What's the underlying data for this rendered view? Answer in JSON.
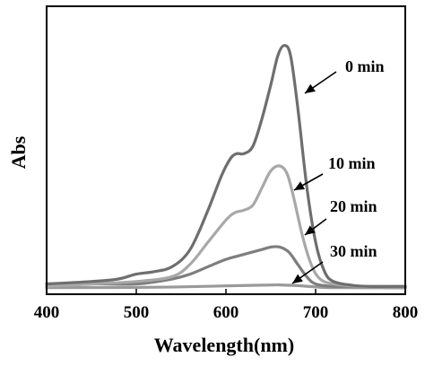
{
  "chart_data": {
    "type": "line",
    "xlabel": "Wavelength(nm)",
    "ylabel": "Abs",
    "xlim": [
      400,
      800
    ],
    "ylim": [
      0,
      1.0
    ],
    "x_ticks": [
      "400",
      "500",
      "600",
      "700",
      "800"
    ],
    "grid": false,
    "legend": "none",
    "series": [
      {
        "label": "0 min",
        "color": "#6e6e6e",
        "x": [
          400,
          450,
          480,
          500,
          520,
          540,
          560,
          580,
          595,
          605,
          612,
          620,
          630,
          640,
          650,
          658,
          665,
          672,
          680,
          690,
          700,
          710,
          720,
          740,
          760,
          800
        ],
        "y": [
          0.02,
          0.03,
          0.04,
          0.06,
          0.07,
          0.09,
          0.16,
          0.32,
          0.46,
          0.53,
          0.55,
          0.55,
          0.58,
          0.69,
          0.83,
          0.95,
          0.99,
          0.95,
          0.74,
          0.42,
          0.19,
          0.07,
          0.03,
          0.015,
          0.01,
          0.01
        ]
      },
      {
        "label": "10 min",
        "color": "#a8a8a8",
        "x": [
          400,
          450,
          500,
          540,
          560,
          580,
          600,
          610,
          620,
          630,
          640,
          650,
          660,
          668,
          675,
          685,
          695,
          705,
          720,
          750,
          800
        ],
        "y": [
          0.01,
          0.02,
          0.03,
          0.05,
          0.1,
          0.19,
          0.28,
          0.31,
          0.32,
          0.34,
          0.41,
          0.48,
          0.5,
          0.47,
          0.38,
          0.22,
          0.1,
          0.04,
          0.02,
          0.01,
          0.01
        ]
      },
      {
        "label": "20 min",
        "color": "#7e7e7e",
        "x": [
          400,
          450,
          500,
          540,
          560,
          580,
          600,
          620,
          640,
          650,
          660,
          670,
          680,
          690,
          700,
          720,
          750,
          800
        ],
        "y": [
          0.01,
          0.02,
          0.02,
          0.04,
          0.06,
          0.09,
          0.12,
          0.14,
          0.16,
          0.17,
          0.17,
          0.15,
          0.1,
          0.05,
          0.02,
          0.01,
          0.01,
          0.01
        ]
      },
      {
        "label": "30 min",
        "color": "#999999",
        "x": [
          400,
          500,
          550,
          600,
          640,
          660,
          680,
          700,
          720,
          800
        ],
        "y": [
          0.005,
          0.006,
          0.008,
          0.012,
          0.015,
          0.016,
          0.013,
          0.008,
          0.005,
          0.004
        ]
      }
    ],
    "annotations": [
      {
        "text": "0 min",
        "target_series": 0
      },
      {
        "text": "10 min",
        "target_series": 1
      },
      {
        "text": "20 min",
        "target_series": 2
      },
      {
        "text": "30 min",
        "target_series": 3
      }
    ]
  }
}
